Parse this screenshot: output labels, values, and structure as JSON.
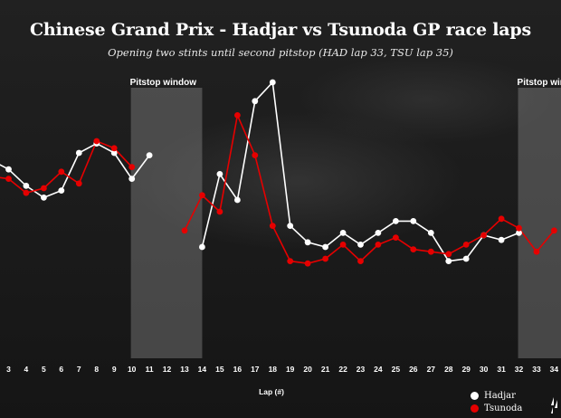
{
  "header": {
    "title": "Chinese Grand Prix - Hadjar vs Tsunoda GP race laps",
    "subtitle": "Opening two stints until second pitstop (HAD lap 33, TSU lap 35)"
  },
  "chart_data": {
    "type": "line",
    "title": "Chinese Grand Prix - Hadjar vs Tsunoda GP race laps",
    "subtitle": "Opening two stints until second pitstop (HAD lap 33, TSU lap 35)",
    "xlabel": "Lap (#)",
    "ylabel": "",
    "xlim": [
      2.5,
      34.2
    ],
    "ylim": [
      0,
      100
    ],
    "y_hidden": true,
    "x_ticks": [
      3,
      4,
      5,
      6,
      7,
      8,
      9,
      10,
      11,
      12,
      13,
      14,
      15,
      16,
      17,
      18,
      19,
      20,
      21,
      22,
      23,
      24,
      25,
      26,
      27,
      28,
      29,
      30,
      31,
      32,
      33,
      34
    ],
    "x_tick_labels": [
      "3",
      "4",
      "5",
      "6",
      "7",
      "8",
      "9",
      "10",
      "11",
      "12",
      "13",
      "14",
      "15",
      "16",
      "17",
      "18",
      "19",
      "20",
      "21",
      "22",
      "23",
      "24",
      "25",
      "26",
      "27",
      "28",
      "29",
      "30",
      "31",
      "32",
      "33",
      "34"
    ],
    "grid": false,
    "legend_position": "bottom-right",
    "shaded_regions": [
      {
        "label": "Pitstop window",
        "x_start": 10.0,
        "x_end": 14.0
      },
      {
        "label": "Pitstop windov",
        "x_start": 32.0,
        "x_end": 34.5
      }
    ],
    "series": [
      {
        "name": "Hadjar",
        "color": "#ffffff",
        "segments": [
          {
            "x": [
              2,
              3,
              4,
              5,
              6,
              7,
              8,
              9,
              10,
              11
            ],
            "y": [
              62,
              58,
              51,
              46,
              49,
              65,
              69,
              65,
              54,
              64
            ]
          },
          {
            "x": [
              14,
              15,
              16,
              17,
              18,
              19,
              20,
              21,
              22,
              23,
              24,
              25,
              26,
              27,
              28,
              29,
              30,
              31,
              32
            ],
            "y": [
              25,
              56,
              45,
              87,
              95,
              34,
              27,
              25,
              31,
              26,
              31,
              36,
              36,
              31,
              19,
              20,
              30,
              28,
              31
            ]
          }
        ]
      },
      {
        "name": "Tsunoda",
        "color": "#e60000",
        "segments": [
          {
            "x": [
              2,
              3,
              4,
              5,
              6,
              7,
              8,
              9,
              10
            ],
            "y": [
              55,
              54,
              48,
              50,
              57,
              52,
              70,
              67,
              59
            ]
          },
          {
            "x": [
              13,
              14,
              15,
              16,
              17,
              18,
              19,
              20,
              21,
              22,
              23,
              24,
              25,
              26,
              27,
              28,
              29,
              30,
              31,
              32,
              33,
              34
            ],
            "y": [
              32,
              47,
              40,
              81,
              64,
              34,
              19,
              18,
              20,
              26,
              19,
              26,
              29,
              24,
              23,
              22,
              26,
              30,
              37,
              33,
              23,
              32
            ]
          }
        ]
      }
    ]
  }
}
